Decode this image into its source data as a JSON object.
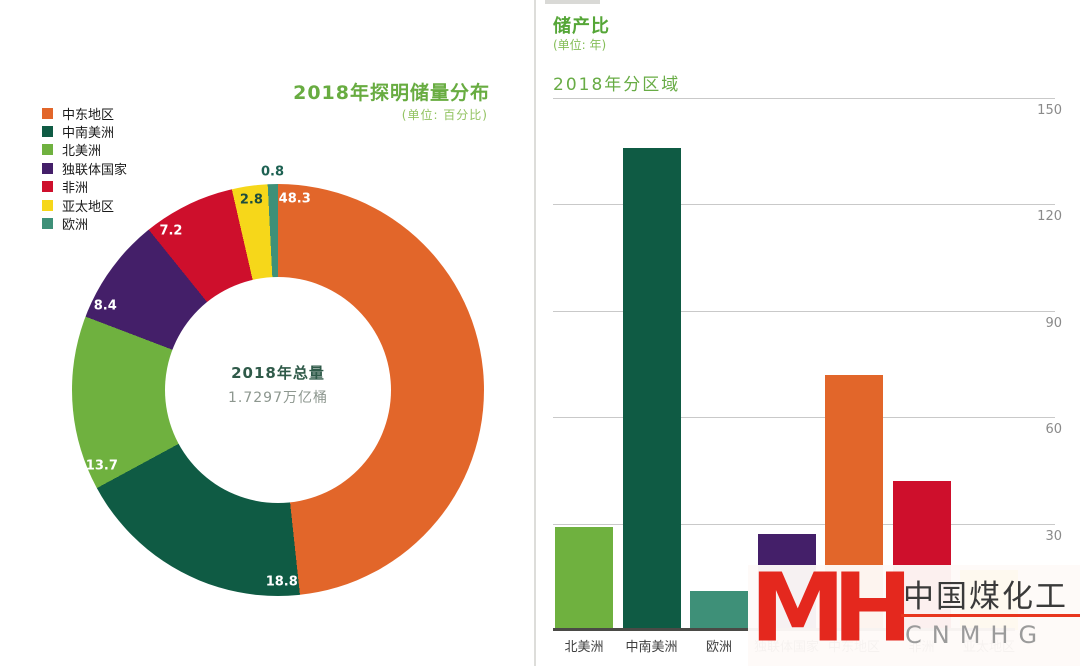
{
  "chart_data": [
    {
      "type": "pie",
      "title": "2018年探明储量分布",
      "unit_note": "(单位: 百分比)",
      "center_label": "2018年总量",
      "center_value": "1.7297万亿桶",
      "legend_position": "top-left",
      "categories": [
        "中东地区",
        "中南美洲",
        "北美洲",
        "独联体国家",
        "非洲",
        "亚太地区",
        "欧洲"
      ],
      "values": [
        48.3,
        18.8,
        13.7,
        8.4,
        7.2,
        2.8,
        0.8
      ],
      "colors": [
        "#E2662A",
        "#0F5B44",
        "#6FB13F",
        "#441F69",
        "#CE0F2C",
        "#F6D71A",
        "#3E9078"
      ],
      "value_label_colors": [
        "#FFFFFF",
        "#FFFFFF",
        "#FFFFFF",
        "#FFFFFF",
        "#FFFFFF",
        "#1D4D3E",
        "#1D6152"
      ]
    },
    {
      "type": "bar",
      "title": "储产比",
      "unit_note": "(单位: 年)",
      "section_title": "2018年分区域",
      "categories": [
        "北美洲",
        "中南美洲",
        "欧洲",
        "独联体国家",
        "中东地区",
        "非洲",
        "亚太地区"
      ],
      "values": [
        29,
        136,
        11,
        27,
        72,
        42,
        17
      ],
      "colors": [
        "#6FB13F",
        "#0F5B44",
        "#3E9078",
        "#441F69",
        "#E2662A",
        "#CE0F2C",
        "#F6D71A"
      ],
      "ylim": [
        0,
        150
      ],
      "yticks": [
        30,
        60,
        90,
        120,
        150
      ],
      "grid": true,
      "legend_position": "none"
    }
  ],
  "watermark": {
    "logo_text": "MH",
    "logo_color": "#E4281E",
    "name_cn": "中国煤化工",
    "name_en": "CNMHG"
  }
}
